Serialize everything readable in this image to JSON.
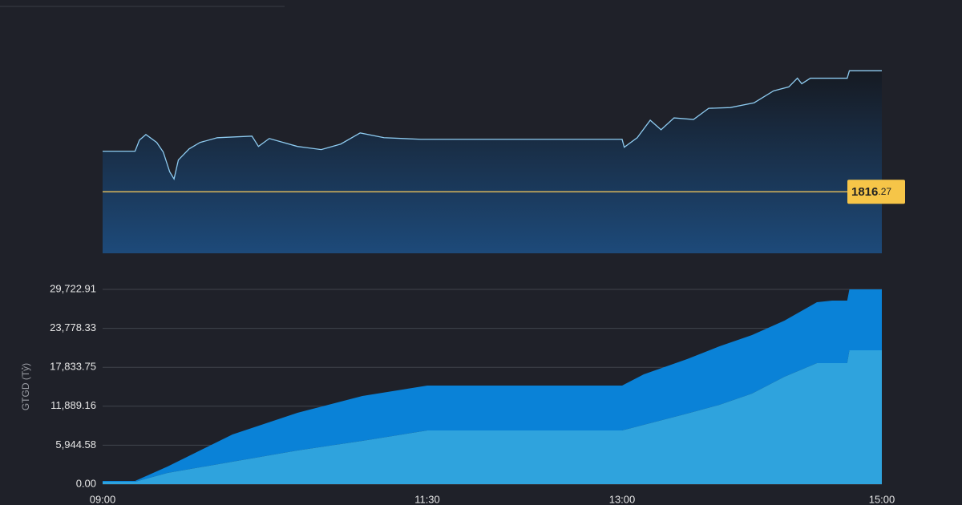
{
  "chart_data": [
    {
      "type": "line",
      "x": [
        "09:00",
        "09:15",
        "09:17",
        "09:20",
        "09:25",
        "09:28",
        "09:31",
        "09:33",
        "09:35",
        "09:40",
        "09:45",
        "09:53",
        "10:09",
        "10:12",
        "10:17",
        "10:30",
        "10:41",
        "10:50",
        "10:59",
        "11:10",
        "11:27",
        "13:00",
        "13:01",
        "13:07",
        "13:13",
        "13:18",
        "13:24",
        "13:33",
        "13:40",
        "13:50",
        "14:01",
        "14:10",
        "14:17",
        "14:21",
        "14:23",
        "14:27",
        "14:44",
        "14:45",
        "15:00"
      ],
      "values": [
        1831.6,
        1831.6,
        1835.8,
        1837.9,
        1834.9,
        1831.3,
        1823.8,
        1821.1,
        1828.3,
        1832.5,
        1834.9,
        1836.7,
        1837.3,
        1833.4,
        1836.4,
        1833.4,
        1832.2,
        1834.3,
        1838.5,
        1836.7,
        1836.1,
        1836.1,
        1833.1,
        1836.7,
        1843.3,
        1839.7,
        1844.2,
        1843.6,
        1847.8,
        1848.1,
        1849.9,
        1854.4,
        1855.9,
        1859.2,
        1857.1,
        1859.2,
        1859.2,
        1862.0,
        1862.0
      ],
      "color": "#8ecbf0",
      "xlim": [
        "09:00",
        "15:00"
      ],
      "ylim": [
        1793,
        1863
      ],
      "reference": {
        "value": 1816.27,
        "label": [
          "1816",
          ".27"
        ],
        "color": "#d9b65a"
      }
    },
    {
      "type": "area",
      "stacked": true,
      "ylabel": "GTGD (Tỷ)",
      "x": [
        "09:00",
        "09:15",
        "09:30",
        "10:00",
        "10:30",
        "11:00",
        "11:30",
        "13:00",
        "13:10",
        "13:30",
        "13:45",
        "14:00",
        "14:15",
        "14:30",
        "14:37",
        "14:44",
        "14:45",
        "15:00"
      ],
      "series": [
        {
          "color": "#2fa3dd",
          "values": [
            367,
            367,
            1712,
            3424,
            5137,
            6604,
            8194,
            8194,
            9050,
            10762,
            12108,
            13820,
            16388,
            18467,
            18467,
            18467,
            20424,
            20424
          ]
        },
        {
          "color": "#0a82d7",
          "values": [
            122,
            122,
            978,
            4158,
            5748,
            6849,
            6849,
            6849,
            7705,
            8316,
            8928,
            8928,
            8561,
            9295,
            9539,
            9539,
            9295,
            9295
          ]
        }
      ],
      "xlim": [
        "09:00",
        "15:00"
      ],
      "xticks": [
        "09:00",
        "11:30",
        "13:00",
        "15:00"
      ],
      "ylim": [
        0,
        29722.91
      ],
      "yticks": [
        {
          "value": 0,
          "label": "0.00"
        },
        {
          "value": 5944.58,
          "label": "5,944.58"
        },
        {
          "value": 11889.16,
          "label": "11,889.16"
        },
        {
          "value": 17833.75,
          "label": "17,833.75"
        },
        {
          "value": 23778.33,
          "label": "23,778.33"
        },
        {
          "value": 29722.91,
          "label": "29,722.91"
        }
      ],
      "grid": true
    }
  ]
}
